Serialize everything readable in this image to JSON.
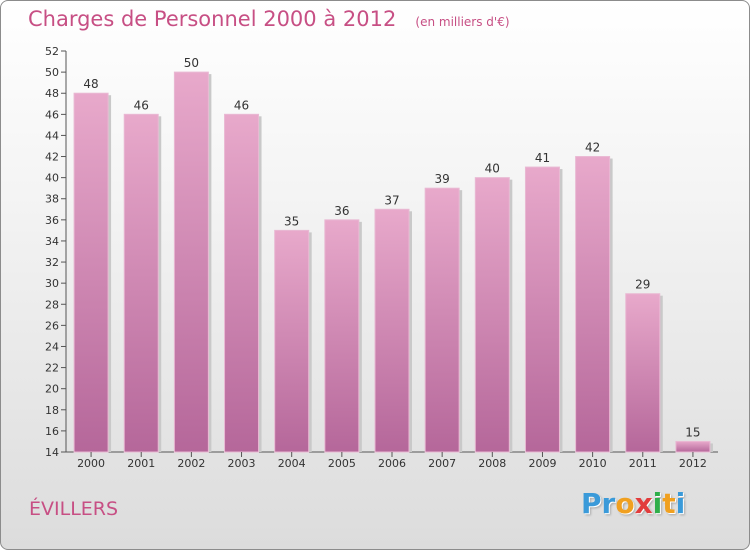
{
  "title": "Charges de Personnel 2000 à 2012",
  "unit": "(en milliers d'€)",
  "town": "ÉVILLERS",
  "brand": {
    "letters": [
      "P",
      "r",
      "o",
      "x",
      "i",
      "t",
      "i"
    ],
    "colors": [
      "#3a9ad9",
      "#3a9ad9",
      "#f0a020",
      "#e23c3c",
      "#2fae4a",
      "#f0a020",
      "#3a9ad9"
    ]
  },
  "colors": {
    "bar": "#d98fb6",
    "bar_dark": "#c56c9d",
    "text_accent": "#c74f84"
  },
  "chart_data": {
    "type": "bar",
    "categories": [
      "2000",
      "2001",
      "2002",
      "2003",
      "2004",
      "2005",
      "2006",
      "2007",
      "2008",
      "2009",
      "2010",
      "2011",
      "2012"
    ],
    "values": [
      48,
      46,
      50,
      46,
      35,
      36,
      37,
      39,
      40,
      41,
      42,
      29,
      15
    ],
    "ylim": [
      14,
      52
    ],
    "yticks": [
      14,
      16,
      18,
      20,
      22,
      24,
      26,
      28,
      30,
      32,
      34,
      36,
      38,
      40,
      42,
      44,
      46,
      48,
      50,
      52
    ],
    "grid": false,
    "data_labels": true
  }
}
